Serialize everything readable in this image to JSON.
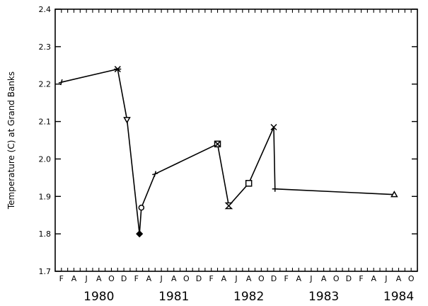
{
  "chart_data": {
    "type": "line",
    "ylabel": "Temperature (C) at Grand Banks",
    "ylim": [
      1.7,
      2.4
    ],
    "yticks": [
      1.7,
      1.8,
      1.9,
      2.0,
      2.1,
      2.2,
      2.3,
      2.4
    ],
    "ytick_labels": [
      "1.7",
      "1.8",
      "1.9",
      "2.0",
      "2.1",
      "2.2",
      "2.3",
      "2.4"
    ],
    "xlim_months": [
      0,
      58
    ],
    "x_month_letters": [
      "F",
      "A",
      "J",
      "A",
      "O",
      "D",
      "F",
      "A",
      "J",
      "A",
      "O",
      "D",
      "F",
      "A",
      "J",
      "A",
      "O",
      "D",
      "F",
      "A",
      "J",
      "A",
      "O",
      "D",
      "F",
      "A",
      "J",
      "A",
      "O"
    ],
    "x_year_labels": [
      {
        "label": "1980",
        "month": 7
      },
      {
        "label": "1981",
        "month": 19
      },
      {
        "label": "1982",
        "month": 31
      },
      {
        "label": "1983",
        "month": 43
      },
      {
        "label": "1984",
        "month": 55
      }
    ],
    "grid": false,
    "series": [
      {
        "points": [
          {
            "month": 1.0,
            "y": 2.205,
            "marker": "plus-tilted"
          },
          {
            "month": 10.0,
            "y": 2.24,
            "marker": "asterisk"
          },
          {
            "month": 11.5,
            "y": 2.105,
            "marker": "triangle-down"
          },
          {
            "month": 13.5,
            "y": 1.8,
            "marker": "diamond-filled"
          },
          {
            "month": 13.8,
            "y": 1.87,
            "marker": "circle-open"
          },
          {
            "month": 16.0,
            "y": 1.96,
            "marker": "plus-tilted"
          },
          {
            "month": 26.0,
            "y": 2.04,
            "marker": "square-cross"
          },
          {
            "month": 27.8,
            "y": 1.875,
            "marker": "hourglass"
          },
          {
            "month": 31.0,
            "y": 1.935,
            "marker": "square-open"
          },
          {
            "month": 35.0,
            "y": 2.085,
            "marker": "x"
          },
          {
            "month": 35.2,
            "y": 1.92,
            "marker": "plus"
          },
          {
            "month": 54.3,
            "y": 1.905,
            "marker": "triangle-up"
          }
        ]
      }
    ]
  }
}
